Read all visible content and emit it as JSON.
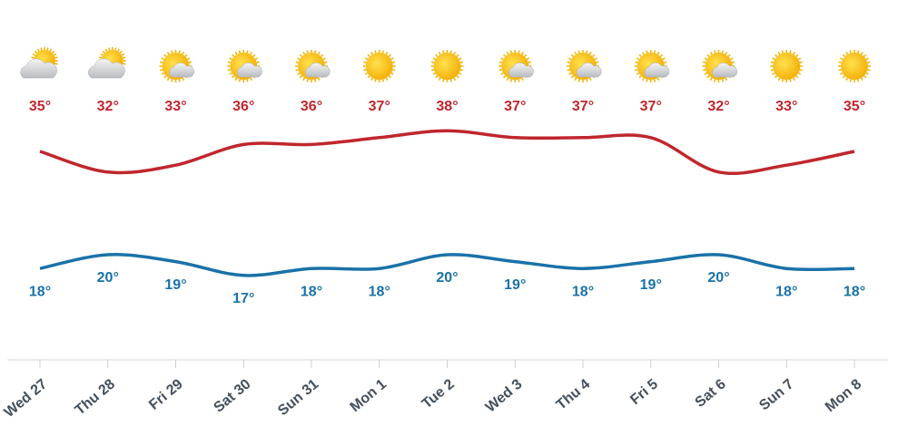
{
  "chart_data": {
    "type": "line",
    "categories": [
      "Wed 27",
      "Thu 28",
      "Fri 29",
      "Sat 30",
      "Sun 31",
      "Mon 1",
      "Tue 2",
      "Wed 3",
      "Thu 4",
      "Fri 5",
      "Sat 6",
      "Sun 7",
      "Mon 8"
    ],
    "series": [
      {
        "name": "High",
        "color": "#c0262d",
        "values": [
          35,
          32,
          33,
          36,
          36,
          37,
          38,
          37,
          37,
          37,
          32,
          33,
          35
        ],
        "value_labels": [
          "35°",
          "32°",
          "33°",
          "36°",
          "36°",
          "37°",
          "38°",
          "37°",
          "37°",
          "37°",
          "32°",
          "33°",
          "35°"
        ]
      },
      {
        "name": "Low",
        "color": "#1a72a8",
        "values": [
          18,
          20,
          19,
          17,
          18,
          18,
          20,
          19,
          18,
          19,
          20,
          18,
          18
        ],
        "value_labels": [
          "18°",
          "20°",
          "19°",
          "17°",
          "18°",
          "18°",
          "20°",
          "19°",
          "18°",
          "19°",
          "20°",
          "18°",
          "18°"
        ]
      }
    ],
    "ylim": [
      5,
      40
    ]
  }
}
